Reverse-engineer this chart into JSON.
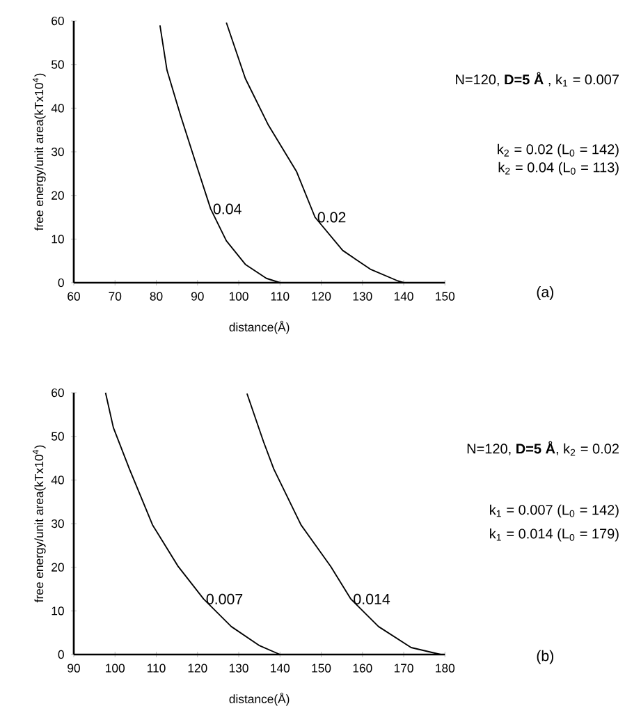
{
  "chart_data": [
    {
      "type": "line",
      "xlabel": "distance(Å)",
      "ylabel": "free energy/unit area(kTx10$^{4}$)",
      "xlim": [
        60,
        150
      ],
      "ylim": [
        0,
        60
      ],
      "xticks": [
        60,
        70,
        80,
        90,
        100,
        110,
        120,
        130,
        140,
        150
      ],
      "yticks": [
        0,
        10,
        20,
        30,
        40,
        50,
        60
      ],
      "marker": "none",
      "line_style": "solid",
      "annotations": [
        "N=120, **D=5 Å** , k$_{1}$ = 0.007",
        "k$_{2}$ = 0.02 (L$_{0}$ = 142)",
        "k$_{2}$ = 0.04 (L$_{0}$ = 113)",
        "(a)"
      ],
      "series": [
        {
          "name": "0.04",
          "color": "#000000",
          "x": [
            80.9,
            82.6,
            85.9,
            89.9,
            93.2,
            97,
            101.6,
            106.7,
            110
          ],
          "values": [
            59,
            48.7,
            38.3,
            26.5,
            16.9,
            9.6,
            4.2,
            1,
            0
          ]
        },
        {
          "name": "0.02",
          "color": "#000000",
          "x": [
            97,
            101.6,
            107.2,
            114,
            118.5,
            125.2,
            131.9,
            138.6,
            140
          ],
          "values": [
            59.6,
            46.8,
            36.1,
            25.5,
            15,
            7.4,
            3.1,
            0.4,
            0
          ]
        }
      ]
    },
    {
      "type": "line",
      "xlabel": "distance(Å)",
      "ylabel": "free energy/unit area(kTx10$^{4}$)",
      "xlim": [
        90,
        180
      ],
      "ylim": [
        0,
        60
      ],
      "xticks": [
        90,
        100,
        110,
        120,
        130,
        140,
        150,
        160,
        170,
        180
      ],
      "yticks": [
        0,
        10,
        20,
        30,
        40,
        50,
        60
      ],
      "marker": "none",
      "line_style": "solid",
      "annotations": [
        "N=120, **D=5 Å**, k$_{2}$ = 0.02",
        "k$_{1}$ = 0.007 (L$_{0}$ = 142)",
        "k$_{1}$ = 0.014 (L$_{0}$ = 179)",
        "(b)"
      ],
      "series": [
        {
          "name": "0.007",
          "color": "#000000",
          "x": [
            97.7,
            99.6,
            103.5,
            109.1,
            115.3,
            121.5,
            128.2,
            134.9,
            140
          ],
          "values": [
            60,
            52,
            42.5,
            29.7,
            20.2,
            12.7,
            6.4,
            2.1,
            0
          ]
        },
        {
          "name": "0.014",
          "color": "#000000",
          "x": [
            132,
            136,
            138.5,
            145.1,
            152.3,
            157.2,
            163.9,
            171.8,
            179
          ],
          "values": [
            59.8,
            48.8,
            42.5,
            29.7,
            20.2,
            12.7,
            6.4,
            1.6,
            0
          ]
        }
      ]
    }
  ]
}
